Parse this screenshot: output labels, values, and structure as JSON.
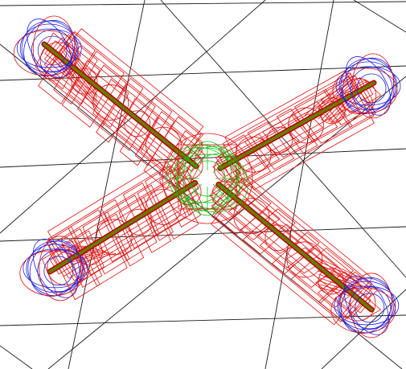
{
  "viewport": {
    "background_color": "#ffffff",
    "grid_color": "#1a1a1a"
  },
  "model": {
    "arm_wireframe_color": "#e01010",
    "hub_wireframe_color": "#10c010",
    "rotor_wireframe_color": "#2020e0",
    "arm_core_color": "#6b7a00",
    "arm_count": 4,
    "rotor_count": 4
  }
}
